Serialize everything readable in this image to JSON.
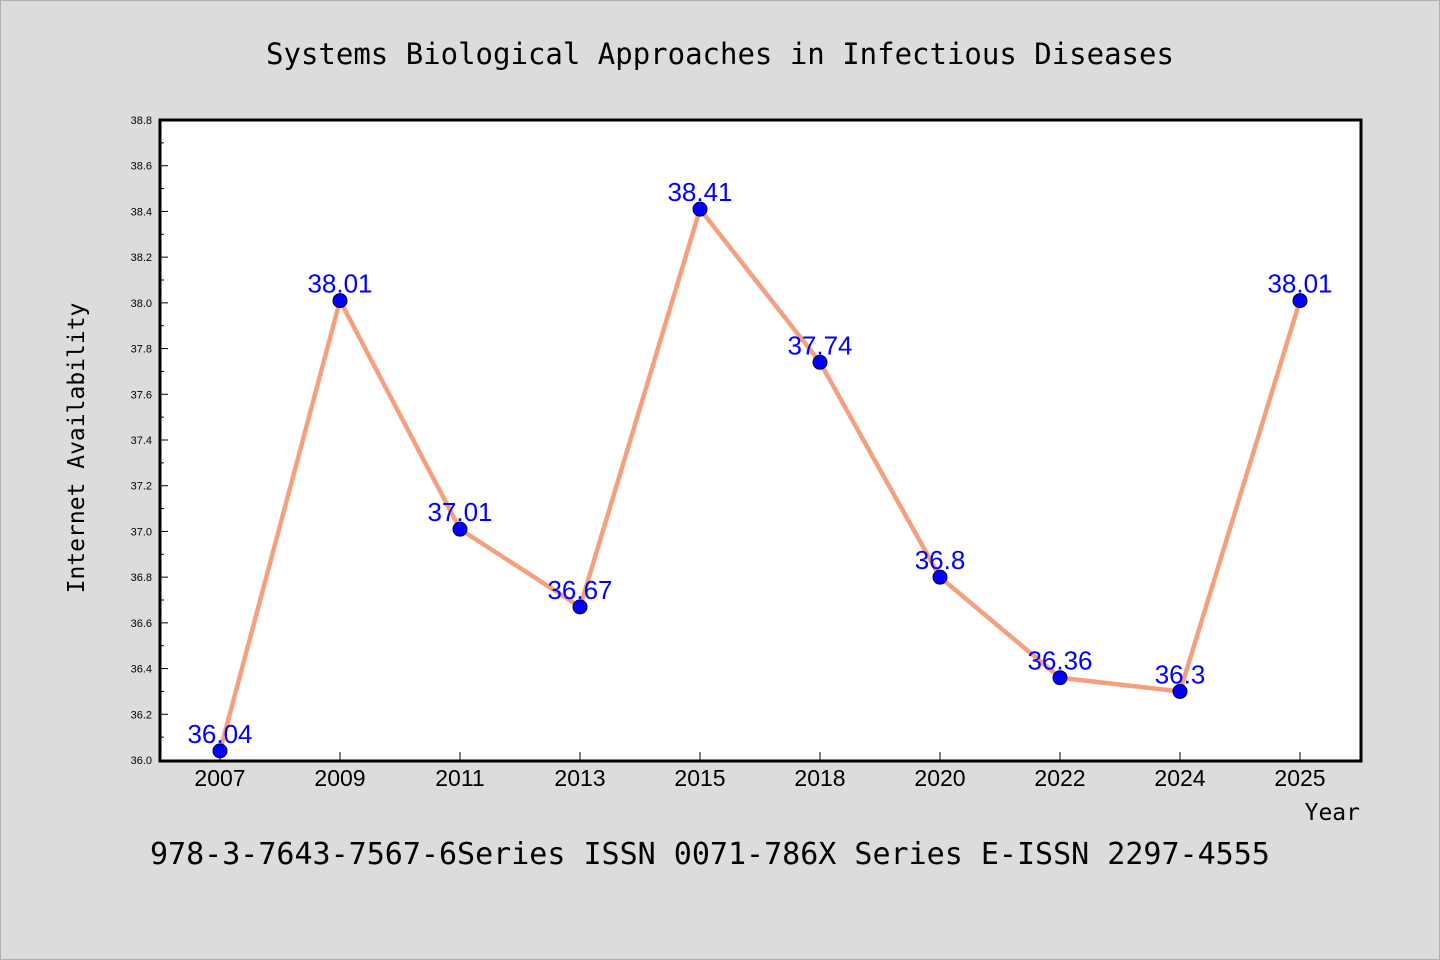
{
  "chart_data": {
    "type": "line",
    "title": "Systems Biological Approaches in Infectious Diseases",
    "xlabel": "Year",
    "ylabel": "Internet Availability",
    "categories": [
      "2007",
      "2009",
      "2011",
      "2013",
      "2015",
      "2018",
      "2020",
      "2022",
      "2024",
      "2025"
    ],
    "values": [
      36.04,
      38.01,
      37.01,
      36.67,
      38.41,
      37.74,
      36.8,
      36.36,
      36.3,
      38.01
    ],
    "data_labels": [
      "36.04",
      "38.01",
      "37.01",
      "36.67",
      "38.41",
      "37.74",
      "36.8",
      "36.36",
      "36.3",
      "38.01"
    ],
    "ylim": [
      36.0,
      38.8
    ],
    "yticks": [
      "36.0",
      "36.2",
      "36.4",
      "36.6",
      "36.8",
      "37.0",
      "37.2",
      "37.4",
      "37.6",
      "37.8",
      "38.0",
      "38.2",
      "38.4",
      "38.6",
      "38.8"
    ],
    "grid": false,
    "colors": {
      "line": "#f4a07e",
      "marker": "#0000ff",
      "label": "#0000ff",
      "plot_bg": "#ffffff",
      "figure_bg": "#dcdcdc"
    }
  },
  "caption": "978-3-7643-7567-6Series ISSN 0071-786X Series E-ISSN 2297-4555"
}
